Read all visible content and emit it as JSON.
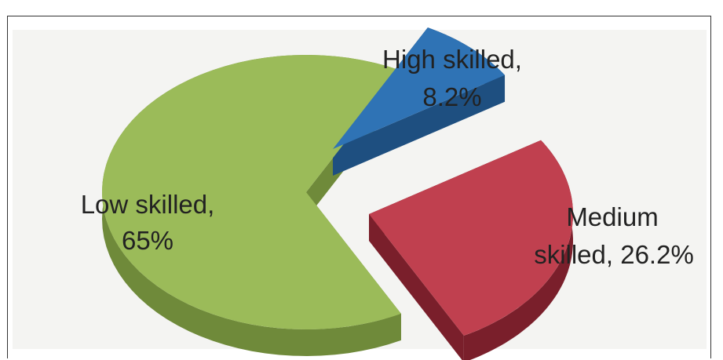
{
  "chart_data": {
    "type": "pie",
    "title": "",
    "slices": [
      {
        "label": "Low skilled, 65%",
        "line1": "Low skilled,",
        "line2": "65%",
        "value": 65.0,
        "color": "#9bbb59",
        "dark": "#6f8a3a"
      },
      {
        "label": "High skilled, 8.2%",
        "line1": "High skilled,",
        "line2": "8.2%",
        "value": 8.2,
        "color": "#2f73b5",
        "dark": "#1e4f80"
      },
      {
        "label": "Medium skilled, 26.2%",
        "line1": "Medium",
        "line2": "skilled, 26.2%",
        "value": 26.2,
        "color": "#c0404f",
        "dark": "#7a1f2b"
      }
    ],
    "style": "3d-exploded"
  }
}
